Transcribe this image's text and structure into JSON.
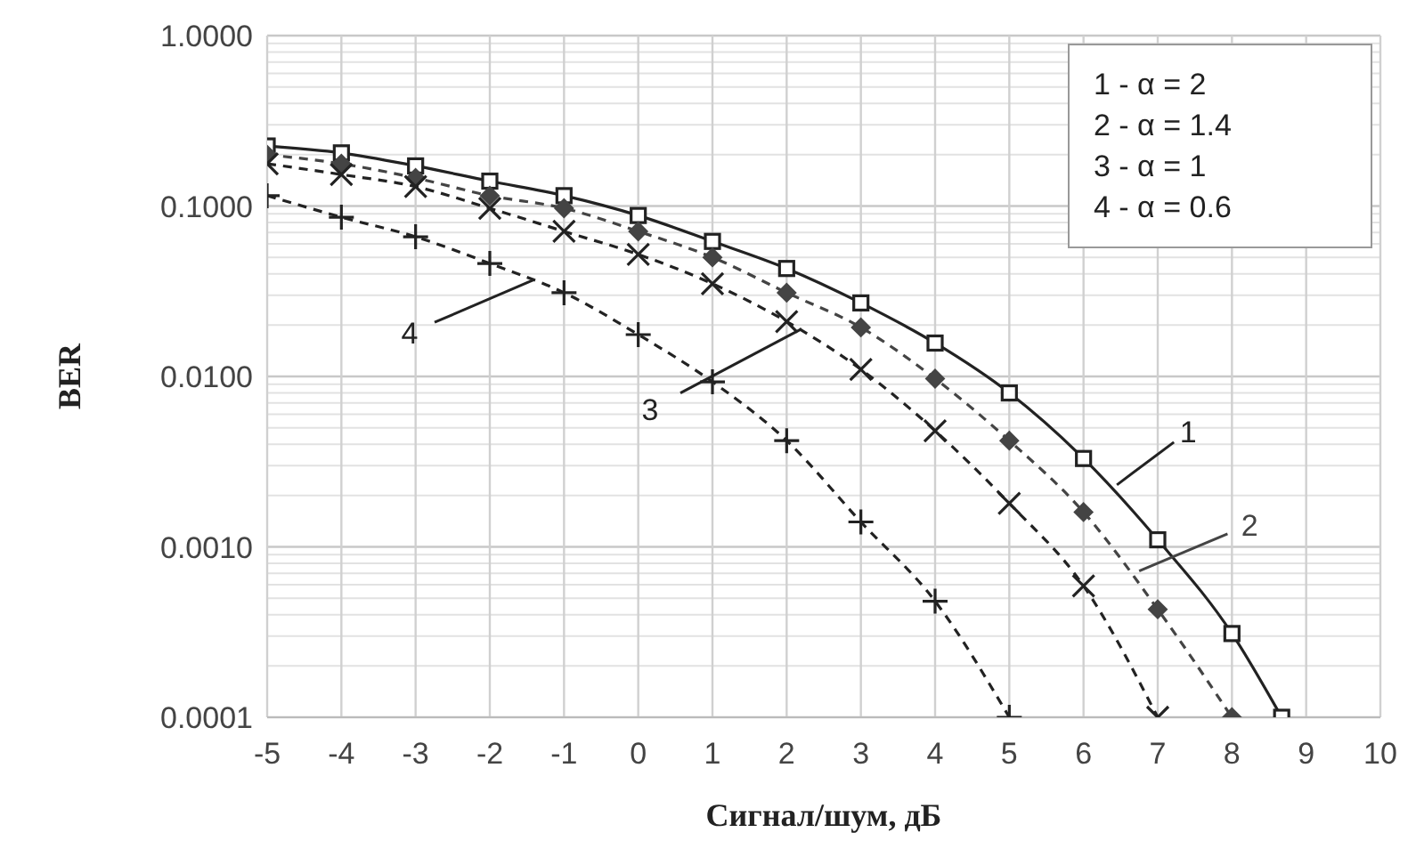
{
  "chart_data": {
    "type": "line",
    "xlabel": "Сигнал/шум, дБ",
    "ylabel": "BER",
    "log": "y",
    "grid": true,
    "xlim": [
      -5,
      10
    ],
    "xticks": [
      -5,
      -4,
      -3,
      -2,
      -1,
      0,
      1,
      2,
      3,
      4,
      5,
      6,
      7,
      8,
      9,
      10
    ],
    "ylim": [
      0.0001,
      1
    ],
    "yticks": [
      {
        "value": 0.0001,
        "label": "0.0001"
      },
      {
        "value": 0.001,
        "label": "0.0010"
      },
      {
        "value": 0.01,
        "label": "0.0100"
      },
      {
        "value": 0.1,
        "label": "0.1000"
      },
      {
        "value": 1,
        "label": "1.0000"
      }
    ],
    "series": [
      {
        "name": "1",
        "color": "#222222",
        "marker": "square",
        "line_style": "solid",
        "x": [
          -5,
          -4,
          -3,
          -2,
          -1,
          0,
          1,
          2,
          3,
          4,
          5,
          6,
          7,
          8,
          8.67
        ],
        "values": [
          0.225,
          0.205,
          0.172,
          0.14,
          0.115,
          0.088,
          0.062,
          0.043,
          0.027,
          0.0157,
          0.008,
          0.0033,
          0.0011,
          0.00031,
          0.0001
        ]
      },
      {
        "name": "2",
        "color": "#444444",
        "marker": "diamond",
        "line_style": "dashed",
        "x": [
          -5,
          -4,
          -3,
          -2,
          -1,
          0,
          1,
          2,
          3,
          4,
          5,
          6,
          7,
          8
        ],
        "values": [
          0.2,
          0.177,
          0.146,
          0.115,
          0.097,
          0.071,
          0.05,
          0.031,
          0.0194,
          0.0097,
          0.0042,
          0.0016,
          0.00043,
          0.0001
        ]
      },
      {
        "name": "3",
        "color": "#222222",
        "marker": "x",
        "line_style": "dashed",
        "x": [
          -5,
          -4,
          -3,
          -2,
          -1,
          0,
          1,
          2,
          3,
          4,
          5,
          6,
          7
        ],
        "values": [
          0.177,
          0.153,
          0.13,
          0.097,
          0.071,
          0.052,
          0.035,
          0.021,
          0.011,
          0.0048,
          0.0018,
          0.00059,
          0.0001
        ]
      },
      {
        "name": "4",
        "color": "#222222",
        "marker": "cross",
        "line_style": "dashed",
        "x": [
          -5,
          -4,
          -3,
          -2,
          -1,
          0,
          1,
          2,
          3,
          4,
          5
        ],
        "values": [
          0.115,
          0.086,
          0.066,
          0.046,
          0.031,
          0.0176,
          0.0093,
          0.0042,
          0.0014,
          0.00048,
          0.0001
        ]
      }
    ],
    "annotations": [
      "1 - α = 2",
      "2 - α = 1.4",
      "3 - α = 1",
      "4 - α = 0.6"
    ]
  }
}
